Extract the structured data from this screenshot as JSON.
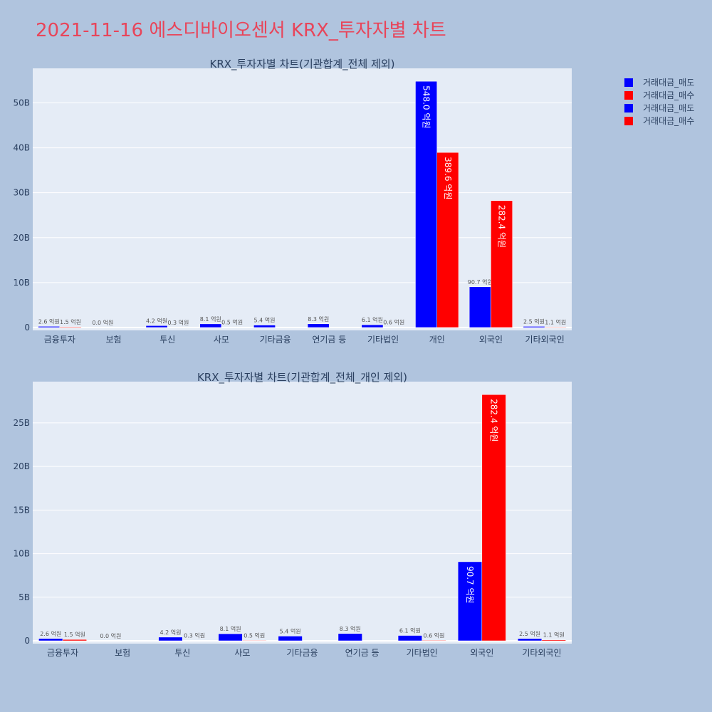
{
  "page": {
    "title": "2021-11-16 에스디바이오센서 KRX_투자자별 차트"
  },
  "colors": {
    "sell": "#0000ff",
    "buy": "#ff0000",
    "plot_bg": "#e5ecf6",
    "page_bg": "#b0c4de",
    "title": "#e8455a"
  },
  "legend": {
    "placement": "top-right",
    "entries": [
      {
        "name": "거래대금_매도",
        "color": "#0000ff"
      },
      {
        "name": "거래대금_매수",
        "color": "#ff0000"
      },
      {
        "name": "거래대금_매도",
        "color": "#0000ff"
      },
      {
        "name": "거래대금_매수",
        "color": "#ff0000"
      }
    ]
  },
  "chart_data": [
    {
      "type": "bar",
      "title": "KRX_투자자별 차트(기관합계_전체 제외)",
      "categories": [
        "금융투자",
        "보험",
        "투신",
        "사모",
        "기타금융",
        "연기금 등",
        "기타법인",
        "개인",
        "외국인",
        "기타외국인"
      ],
      "series": [
        {
          "name": "거래대금_매도",
          "color": "#0000ff",
          "values": [
            0.26,
            0.0,
            0.42,
            0.81,
            0.54,
            0.83,
            0.61,
            54.8,
            9.07,
            0.25
          ],
          "labels": [
            "2.6 억원",
            "0.0 억원",
            "4.2 억원",
            "8.1 억원",
            "5.4 억원",
            "8.3 억원",
            "6.1 억원",
            "548.0 억원",
            "90.7 억원",
            "2.5 억원"
          ]
        },
        {
          "name": "거래대금_매수",
          "color": "#ff0000",
          "values": [
            0.15,
            null,
            0.03,
            0.05,
            null,
            null,
            0.06,
            38.96,
            28.24,
            0.11
          ],
          "labels": [
            "1.5 억원",
            "",
            "0.3 억원",
            "0.5 억원",
            "",
            "",
            "0.6 억원",
            "389.6 억원",
            "282.4 억원",
            "1.1 억원"
          ]
        }
      ],
      "yticks": [
        "0",
        "10B",
        "20B",
        "30B",
        "40B",
        "50B"
      ],
      "ytick_values": [
        0,
        10,
        20,
        30,
        40,
        50
      ],
      "ylim": [
        0,
        57.68
      ],
      "grid": true
    },
    {
      "type": "bar",
      "title": "KRX_투자자별 차트(기관합계_전체_개인 제외)",
      "categories": [
        "금융투자",
        "보험",
        "투신",
        "사모",
        "기타금융",
        "연기금 등",
        "기타법인",
        "외국인",
        "기타외국인"
      ],
      "series": [
        {
          "name": "거래대금_매도",
          "color": "#0000ff",
          "values": [
            0.26,
            0.0,
            0.42,
            0.81,
            0.54,
            0.83,
            0.61,
            9.07,
            0.25
          ],
          "labels": [
            "2.6 억원",
            "0.0 억원",
            "4.2 억원",
            "8.1 억원",
            "5.4 억원",
            "8.3 억원",
            "6.1 억원",
            "90.7 억원",
            "2.5 억원"
          ]
        },
        {
          "name": "거래대금_매수",
          "color": "#ff0000",
          "values": [
            0.15,
            null,
            0.03,
            0.05,
            null,
            null,
            0.06,
            28.24,
            0.11
          ],
          "labels": [
            "1.5 억원",
            "",
            "0.3 억원",
            "0.5 억원",
            "",
            "",
            "0.6 억원",
            "282.4 억원",
            "1.1 억원"
          ]
        }
      ],
      "yticks": [
        "0",
        "5B",
        "10B",
        "15B",
        "20B",
        "25B"
      ],
      "ytick_values": [
        0,
        5,
        10,
        15,
        20,
        25
      ],
      "ylim": [
        0,
        29.73
      ],
      "grid": true
    }
  ]
}
